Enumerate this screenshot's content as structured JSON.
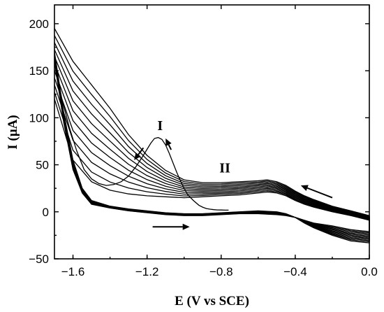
{
  "chart_data": {
    "type": "line",
    "xlabel": "E (V vs SCE)",
    "ylabel": "I (µA)",
    "xlim": [
      -1.7,
      0.0
    ],
    "ylim": [
      -50,
      220
    ],
    "x_ticks": [
      -1.6,
      -1.2,
      -0.8,
      -0.4,
      0.0
    ],
    "x_tick_labels": [
      "−1.6",
      "−1.2",
      "−0.8",
      "−0.4",
      "0.0"
    ],
    "y_ticks": [
      -50,
      0,
      50,
      100,
      150,
      200
    ],
    "y_tick_labels": [
      "−50",
      "0",
      "50",
      "100",
      "150",
      "200"
    ],
    "grid": false,
    "legend": "none",
    "peak_labels": [
      {
        "text": "I",
        "x": -1.13,
        "y": 87
      },
      {
        "text": "II",
        "x": -0.78,
        "y": 42
      }
    ],
    "direction_arrows": [
      {
        "from": [
          -1.22,
          68
        ],
        "to": [
          -1.27,
          55
        ]
      },
      {
        "from": [
          -1.07,
          66
        ],
        "to": [
          -1.1,
          78
        ]
      },
      {
        "from": [
          -0.2,
          15
        ],
        "to": [
          -0.37,
          28
        ]
      },
      {
        "from": [
          -1.17,
          -16
        ],
        "to": [
          -0.97,
          -16
        ]
      }
    ],
    "peak_I_curve": {
      "x": [
        -1.7,
        -1.66,
        -1.62,
        -1.58,
        -1.54,
        -1.5,
        -1.46,
        -1.42,
        -1.38,
        -1.34,
        -1.3,
        -1.26,
        -1.22,
        -1.18,
        -1.16,
        -1.14,
        -1.12,
        -1.1,
        -1.08,
        -1.06,
        -1.04,
        -1.02,
        -1.0,
        -0.98,
        -0.95,
        -0.92,
        -0.9,
        -0.88,
        -0.86,
        -0.84,
        -0.82,
        -0.8,
        -0.78,
        -0.76
      ],
      "y": [
        160,
        120,
        90,
        65,
        45,
        35,
        30,
        28,
        29,
        32,
        38,
        48,
        60,
        73,
        78,
        79,
        77,
        71,
        62,
        52,
        42,
        33,
        25,
        18,
        12,
        7,
        5,
        3.5,
        2.8,
        2.3,
        2.0,
        1.9,
        1.8,
        1.8
      ]
    },
    "cycle_count": 11,
    "cycle_template": {
      "forward_x": [
        -1.7,
        -1.65,
        -1.6,
        -1.55,
        -1.5,
        -1.4,
        -1.3,
        -1.2,
        -1.1,
        -1.0,
        -0.9,
        -0.8,
        -0.7,
        -0.6,
        -0.5,
        -0.45,
        -0.4,
        -0.35,
        -0.3,
        -0.2,
        -0.1,
        0.0
      ],
      "forward_y_first": [
        160,
        95,
        45,
        20,
        8,
        4,
        1,
        -1,
        -3,
        -4,
        -4,
        -3,
        -2,
        -2,
        -3,
        -4,
        -6,
        -9,
        -12,
        -15,
        -19,
        -21
      ],
      "forward_y_last": [
        170,
        105,
        55,
        25,
        12,
        6,
        3,
        1,
        -1,
        -2,
        -2,
        -1,
        0,
        1,
        0,
        -2,
        -6,
        -12,
        -17,
        -25,
        -31,
        -33
      ],
      "reverse_x": [
        0.0,
        -0.1,
        -0.2,
        -0.3,
        -0.35,
        -0.4,
        -0.45,
        -0.5,
        -0.55,
        -0.6,
        -0.7,
        -0.8,
        -0.9,
        -1.0,
        -1.1,
        -1.2,
        -1.3,
        -1.4,
        -1.5,
        -1.6,
        -1.7
      ],
      "reverse_y_first": [
        -9,
        -4,
        0,
        5,
        8,
        12,
        17,
        20,
        21,
        20,
        18,
        17,
        16,
        15,
        16,
        17,
        19,
        23,
        32,
        55,
        120
      ],
      "reverse_y_last": [
        -4,
        1,
        6,
        13,
        17,
        22,
        28,
        32,
        34,
        33,
        32,
        31,
        31,
        34,
        44,
        60,
        82,
        110,
        135,
        160,
        195
      ]
    }
  }
}
